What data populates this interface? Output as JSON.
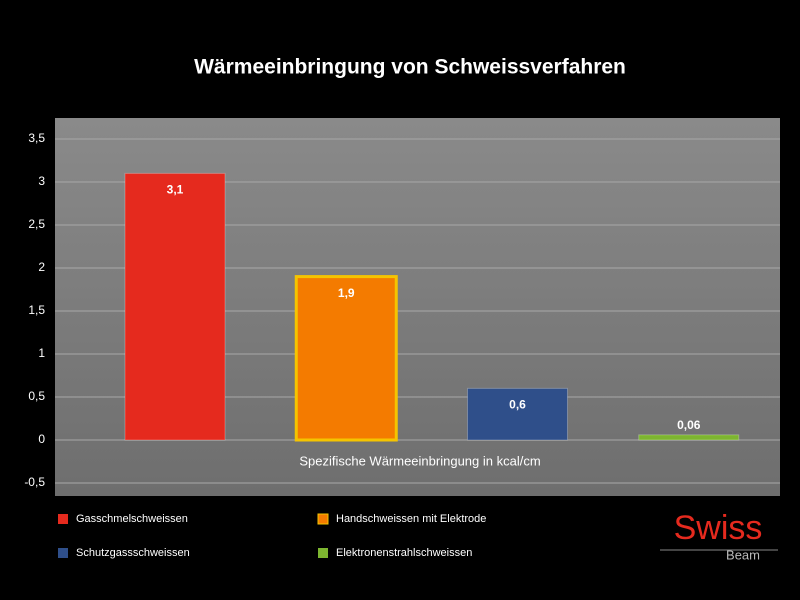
{
  "chart_data": {
    "type": "bar",
    "title": "Wärmeeinbringung von Schweissverfahren",
    "xlabel": "Spezifische Wärmeeinbringung in kcal/cm",
    "categories": [
      null
    ],
    "series": [
      {
        "name": "Gasschmelschweissen",
        "color": "#e52a1e",
        "values": [
          3.1
        ],
        "value_labels": [
          "3,1"
        ]
      },
      {
        "name": "Handschweissen mit Elektrode",
        "color": "#f47b00",
        "values": [
          1.9
        ],
        "value_labels": [
          "1,9"
        ]
      },
      {
        "name": "Schutzgassschweissen",
        "color": "#2f4f8a",
        "values": [
          0.6
        ],
        "value_labels": [
          "0,6"
        ]
      },
      {
        "name": "Elektronenstrahlschweissen",
        "color": "#7db530",
        "values": [
          0.06
        ],
        "value_labels": [
          "0,06"
        ]
      }
    ],
    "ylim": [
      -0.5,
      3.5
    ],
    "yticks": [
      {
        "value": -0.5,
        "label": "-0,5"
      },
      0,
      {
        "value": 0.5,
        "label": "0,5"
      },
      1,
      {
        "value": 1.5,
        "label": "1,5"
      },
      2,
      {
        "value": 2.5,
        "label": "2,5"
      },
      3,
      {
        "value": 3.5,
        "label": "3,5"
      }
    ],
    "grid": true
  },
  "logo": {
    "top": "Swiss",
    "bottom": "Beam"
  }
}
